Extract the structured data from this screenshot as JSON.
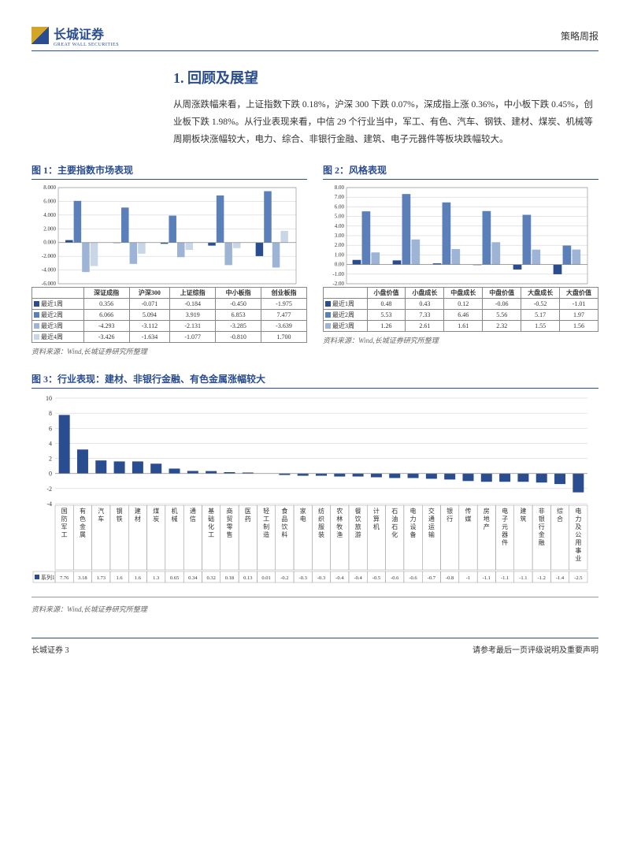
{
  "header": {
    "logo_cn": "长城证券",
    "logo_en": "GREAT WALL SECURITIES",
    "doc_type": "策略周报"
  },
  "section": {
    "title": "1. 回顾及展望",
    "body": "从周涨跌幅来看，上证指数下跌 0.18%，沪深 300 下跌 0.07%，深成指上涨 0.36%，中小板下跌 0.45%，创业板下跌 1.98%。从行业表现来看，中信 29 个行业当中，军工、有色、汽车、钢铁、建材、煤炭、机械等周期板块涨幅较大，电力、综合、非银行金融、建筑、电子元器件等板块跌幅较大。"
  },
  "chart1": {
    "title": "图 1：主要指数市场表现",
    "type": "bar",
    "categories": [
      "深证成指",
      "沪深300",
      "上证综指",
      "中小板指",
      "创业板指"
    ],
    "series_labels": [
      "最近1周",
      "最近2周",
      "最近3周",
      "最近4周"
    ],
    "series_colors": [
      "#2a4d8f",
      "#5b7fb9",
      "#9db4d6",
      "#c9d6e8"
    ],
    "rows": [
      [
        0.356,
        -0.071,
        -0.184,
        -0.45,
        -1.975
      ],
      [
        6.066,
        5.094,
        3.919,
        6.853,
        7.477
      ],
      [
        -4.293,
        -3.112,
        -2.131,
        -3.285,
        -3.639
      ],
      [
        -3.426,
        -1.634,
        -1.077,
        -0.81,
        1.7
      ]
    ],
    "ylim": [
      -6,
      8
    ],
    "ytick_step": 2,
    "tick_fmt": ".000",
    "grid_color": "#ccc",
    "axis_color": "#888",
    "font_size": 7,
    "source": "资料来源：Wind,长城证券研究所整理"
  },
  "chart2": {
    "title": "图 2：风格表现",
    "type": "bar",
    "categories": [
      "小盘价值",
      "小盘成长",
      "中盘成长",
      "中盘价值",
      "大盘成长",
      "大盘价值"
    ],
    "series_labels": [
      "最近1周",
      "最近2周",
      "最近3周"
    ],
    "series_colors": [
      "#2a4d8f",
      "#5b7fb9",
      "#9db4d6"
    ],
    "rows": [
      [
        0.48,
        0.43,
        0.12,
        -0.06,
        -0.52,
        -1.01
      ],
      [
        5.53,
        7.33,
        6.46,
        5.56,
        5.17,
        1.97
      ],
      [
        1.26,
        2.61,
        1.61,
        2.32,
        1.55,
        1.56
      ]
    ],
    "ylim": [
      -2,
      8
    ],
    "ytick_step": 1,
    "tick_fmt": ".00",
    "grid_color": "#ccc",
    "axis_color": "#888",
    "font_size": 7,
    "source": "资料来源：Wind,长城证券研究所整理"
  },
  "chart3": {
    "title": "图 3：行业表现：建材、非银行金融、有色金属涨幅较大",
    "type": "bar",
    "categories": [
      "国防军工",
      "有色金属",
      "汽车",
      "钢铁",
      "建材",
      "煤炭",
      "机械",
      "通信",
      "基础化工",
      "商贸零售",
      "医药",
      "轻工制造",
      "食品饮料",
      "家电",
      "纺织服装",
      "农林牧渔",
      "餐饮旅游",
      "计算机",
      "石油石化",
      "电力设备",
      "交通运输",
      "银行",
      "传媒",
      "房地产",
      "电子元器件",
      "建筑",
      "非银行金融",
      "综合",
      "电力及公用事业"
    ],
    "series_label": "系列1",
    "series_color": "#2a4d8f",
    "values": [
      7.76,
      3.18,
      1.73,
      1.6,
      1.6,
      1.3,
      0.65,
      0.34,
      0.32,
      0.18,
      0.13,
      0.01,
      -0.2,
      -0.3,
      -0.3,
      -0.4,
      -0.4,
      -0.5,
      -0.6,
      -0.6,
      -0.7,
      -0.8,
      -1,
      -1.1,
      -1.1,
      -1.1,
      -1.2,
      -1.4,
      -2.5
    ],
    "ylim": [
      -4,
      10
    ],
    "ytick_step": 2,
    "grid_color": "#ccc",
    "axis_color": "#888",
    "font_size": 7,
    "source": "资料来源：Wind,长城证券研究所整理"
  },
  "footer": {
    "left": "长城证券 3",
    "right": "请参考最后一页评级说明及重要声明"
  }
}
